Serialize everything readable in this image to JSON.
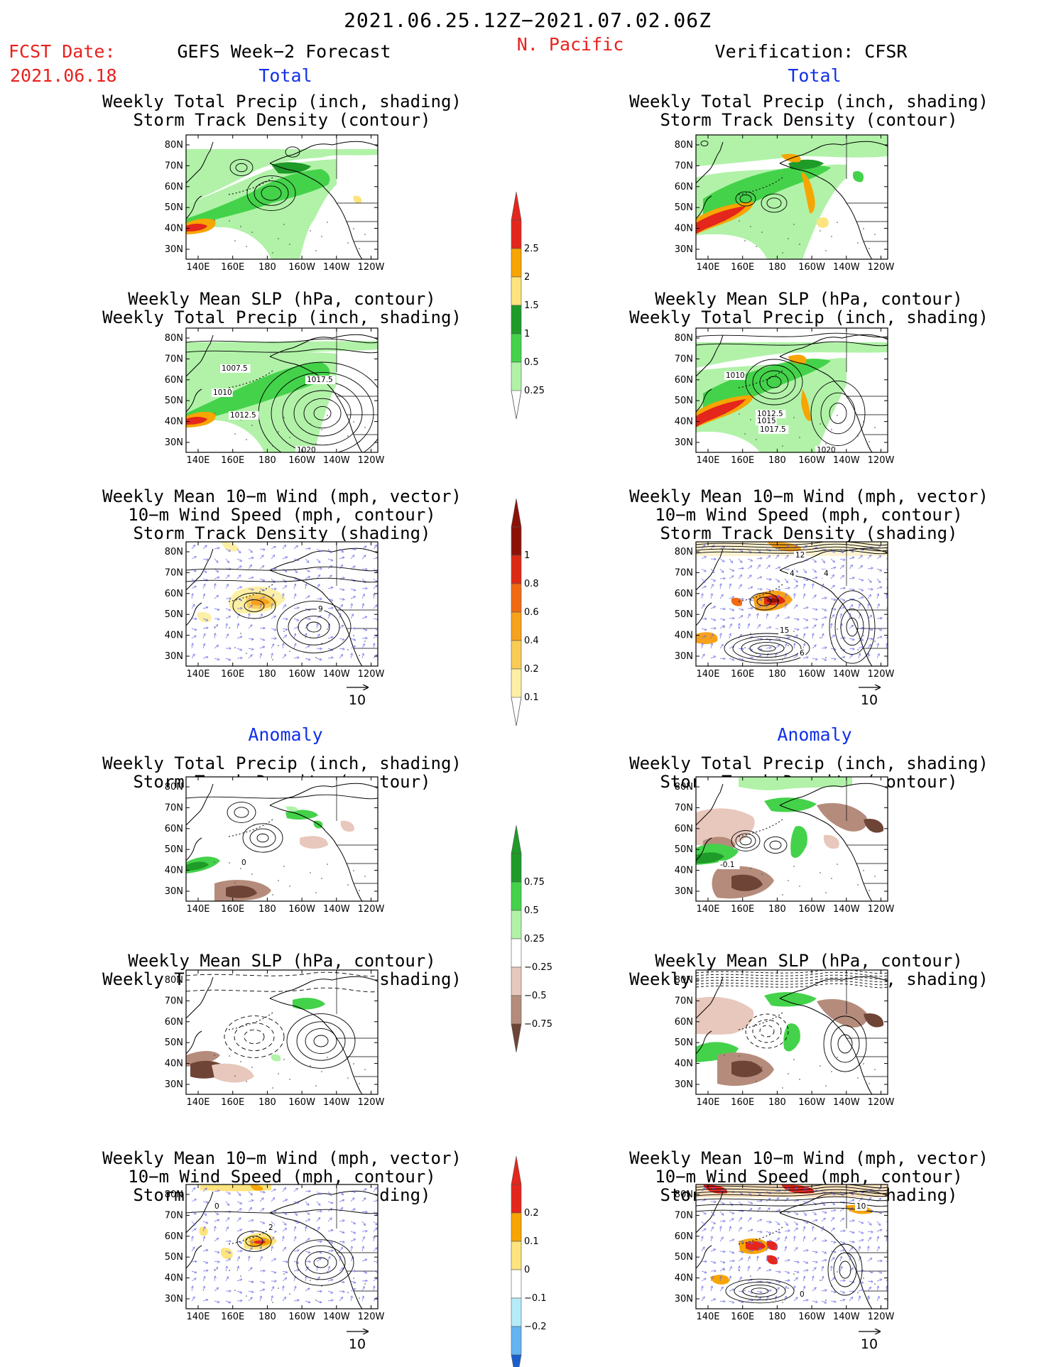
{
  "header": {
    "date_range": "2021.06.25.12Z−2021.07.02.06Z",
    "region": "N. Pacific",
    "fcst_label": "FCST Date:",
    "fcst_date": "2021.06.18",
    "left_title": "GEFS Week−2 Forecast",
    "right_title": "Verification: CFSR"
  },
  "sections": {
    "total": "Total",
    "anomaly": "Anomaly"
  },
  "panel_titles": {
    "precip_track": [
      "Weekly Total Precip (inch, shading)",
      "Storm Track Density (contour)"
    ],
    "slp_precip": [
      "Weekly Mean SLP (hPa, contour)",
      "Weekly Total Precip (inch, shading)"
    ],
    "wind": [
      "Weekly Mean 10−m Wind (mph, vector)",
      "10−m Wind Speed (mph, contour)",
      "Storm Track Density (shading)"
    ]
  },
  "axes": {
    "lat_labels": [
      "80N",
      "70N",
      "60N",
      "50N",
      "40N",
      "30N"
    ],
    "lon_labels": [
      "140E",
      "160E",
      "180",
      "160W",
      "140W",
      "120W"
    ]
  },
  "vector_scale": "10",
  "contour_labels": {
    "fc_slp_total": [
      "1007.5",
      "1010",
      "1012.5",
      "1017.5",
      "1020"
    ],
    "ver_slp_total": [
      "1010",
      "1012.5",
      "1015",
      "1017.5",
      "1020"
    ],
    "fc_wind_total": [
      "9"
    ],
    "ver_wind_total": [
      "12",
      "4",
      "4",
      "15",
      "6"
    ],
    "fc_precip_anom": [
      "0"
    ],
    "ver_precip_anom": [
      "-0.1"
    ],
    "fc_wind_anom": [
      "0",
      "2"
    ],
    "ver_wind_anom": [
      "10",
      "0"
    ]
  },
  "colorbars": {
    "precip_total": {
      "labels": [
        "2.5",
        "2",
        "1.5",
        "1",
        "0.5",
        "0.25"
      ],
      "colors": [
        "#e4261c",
        "#f7a500",
        "#fde47e",
        "#1e9b28",
        "#44d24a",
        "#b1f2a8"
      ]
    },
    "track_total": {
      "labels": [
        "1",
        "0.8",
        "0.6",
        "0.4",
        "0.2",
        "0.1"
      ],
      "colors": [
        "#8c1208",
        "#dc2a14",
        "#f06a14",
        "#f7a21d",
        "#f9cc55",
        "#fdf0a6"
      ]
    },
    "precip_anom": {
      "labels": [
        "0.75",
        "0.5",
        "0.25",
        "−0.25",
        "−0.5",
        "−0.75"
      ],
      "colors": [
        "#1e9b28",
        "#44d24a",
        "#b1f2a8",
        "#ffffff",
        "#e8c8bc",
        "#b58c7c",
        "#6e4437"
      ]
    },
    "track_anom": {
      "labels": [
        "0.2",
        "0.1",
        "0",
        "−0.1",
        "−0.2"
      ],
      "colors": [
        "#e4261c",
        "#f7a500",
        "#fde47e",
        "#ffffff",
        "#b6ecfa",
        "#63b4f2",
        "#1a5fcc"
      ]
    }
  }
}
